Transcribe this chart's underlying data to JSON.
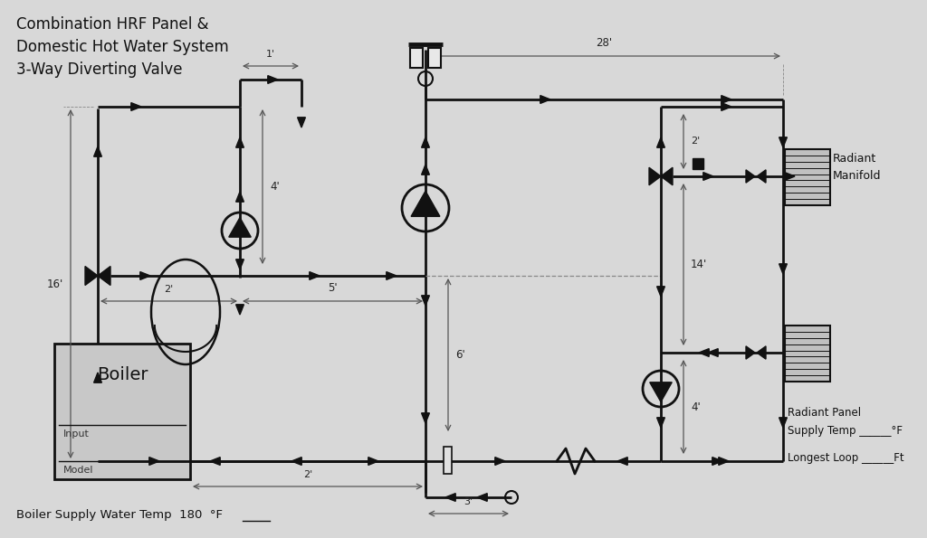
{
  "title": "Combination HRF Panel &\nDomestic Hot Water System\n3-Way Diverting Valve",
  "bg_color": "#d8d8d8",
  "line_color": "#111111",
  "fig_width": 10.24,
  "fig_height": 5.95,
  "annotations": {
    "28ft": "28'",
    "1ft": "1'",
    "4ft_left": "4'",
    "2ft_mid": "2'",
    "5ft": "5'",
    "16ft": "16'",
    "6ft": "6'",
    "4ft_right": "4'",
    "2ft_top_right": "2'",
    "14ft": "14'",
    "3ft": "3'",
    "2ft_bottom": "2'",
    "boiler_supply": "Boiler Supply Water Temp  180  °F",
    "radiant_manifold": "Radiant\nManifold",
    "radiant_panel": "Radiant Panel\nSupply Temp ______°F",
    "longest_loop": "Longest Loop ______Ft",
    "boiler_label": "Boiler",
    "input_label": "Input",
    "model_label": "Model"
  }
}
